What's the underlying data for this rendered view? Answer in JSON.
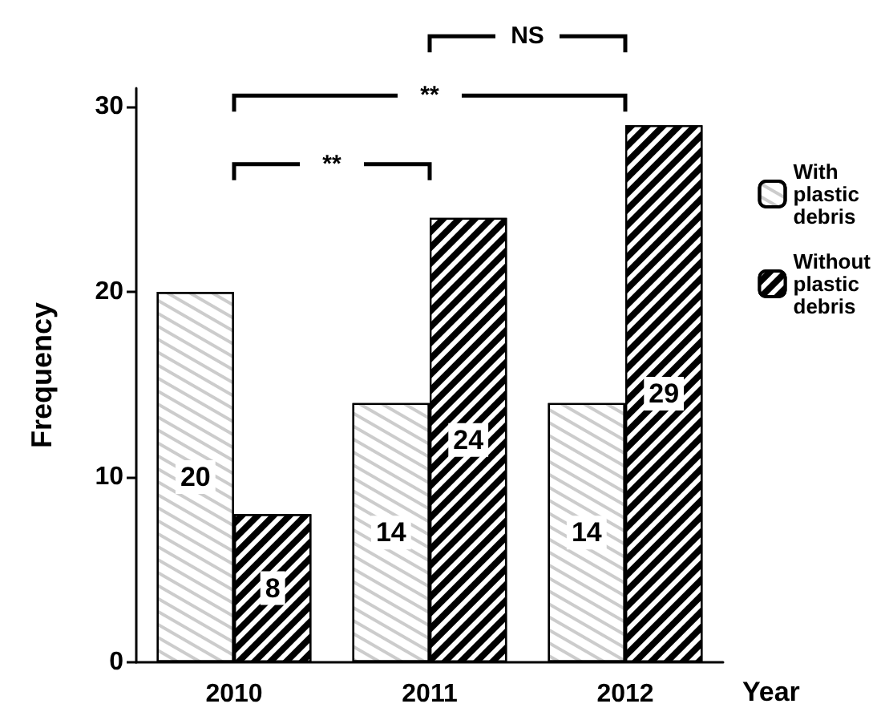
{
  "chart_data": {
    "type": "bar",
    "categories": [
      "2010",
      "2011",
      "2012"
    ],
    "series": [
      {
        "name": "With plastic debris",
        "color": "#ffffff",
        "values": [
          20,
          14,
          14
        ]
      },
      {
        "name": "Without plastic debris",
        "color": "#000000",
        "values": [
          8,
          24,
          29
        ]
      }
    ],
    "xlabel": "Year",
    "ylabel": "Frequency",
    "ylim": [
      0,
      31
    ],
    "yticks": [
      0,
      10,
      20,
      30
    ],
    "data_labels": true,
    "grid": false,
    "legend": "right",
    "annotations": [
      "**",
      "**",
      "NS"
    ]
  }
}
